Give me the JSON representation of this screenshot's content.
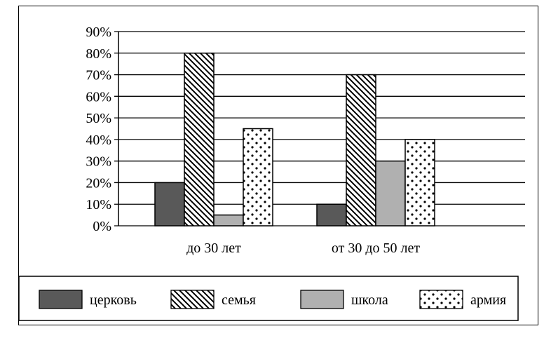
{
  "chart_data": {
    "type": "bar",
    "categories": [
      "до 30 лет",
      "от 30 до 50 лет"
    ],
    "series": [
      {
        "name": "церковь",
        "values": [
          20,
          10
        ],
        "pattern": "solid-dark"
      },
      {
        "name": "семья",
        "values": [
          80,
          70
        ],
        "pattern": "diagonal-hatch"
      },
      {
        "name": "школа",
        "values": [
          5,
          30
        ],
        "pattern": "solid-light"
      },
      {
        "name": "армия",
        "values": [
          45,
          40
        ],
        "pattern": "dots"
      }
    ],
    "yticks": [
      "0%",
      "10%",
      "20%",
      "30%",
      "40%",
      "50%",
      "60%",
      "70%",
      "80%",
      "90%"
    ],
    "ylim": [
      0,
      90
    ],
    "ystep": 10,
    "grid": true,
    "legend_position": "bottom",
    "colors": {
      "dark": "#595959",
      "light": "#b0b0b0",
      "line": "#000000",
      "background": "#ffffff"
    }
  }
}
